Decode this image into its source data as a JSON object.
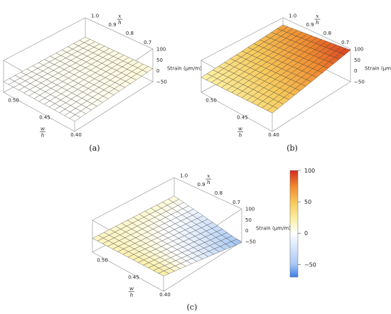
{
  "chart_data": [
    {
      "type": "surface",
      "panel_label": "(a)",
      "x_axis": {
        "label_num": "x",
        "label_den": "h",
        "ticks": [
          "1.0",
          "0.9",
          "0.8",
          "0.7"
        ]
      },
      "w_axis": {
        "label_num": "w",
        "label_den": "h",
        "ticks": [
          "0.50",
          "0.45",
          "0.40"
        ]
      },
      "z_axis": {
        "label": "Strain (μm/m)",
        "ticks": [
          "100",
          "50",
          "0",
          "−50"
        ],
        "range": [
          -50,
          100
        ]
      },
      "corner_values": {
        "x1_w050": 0,
        "x1_w040": 0,
        "x07_w050": 5,
        "x07_w040": 10
      }
    },
    {
      "type": "surface",
      "panel_label": "(b)",
      "x_axis": {
        "label_num": "x",
        "label_den": "h",
        "ticks": [
          "1.0",
          "0.9",
          "0.8",
          "0.7"
        ]
      },
      "w_axis": {
        "label_num": "w",
        "label_den": "h",
        "ticks": [
          "0.50",
          "0.45",
          "0.40"
        ]
      },
      "z_axis": {
        "label": "Strain (μm/m)",
        "ticks": [
          "100",
          "50",
          "0",
          "−50"
        ],
        "range": [
          -50,
          100
        ]
      },
      "corner_values": {
        "x1_w050": 20,
        "x1_w040": 40,
        "x07_w050": 65,
        "x07_w040": 95
      }
    },
    {
      "type": "surface",
      "panel_label": "(c)",
      "x_axis": {
        "label_num": "x",
        "label_den": "h",
        "ticks": [
          "1.0",
          "0.9",
          "0.8",
          "0.7"
        ]
      },
      "w_axis": {
        "label_num": "w",
        "label_den": "h",
        "ticks": [
          "0.50",
          "0.45",
          "0.40"
        ]
      },
      "z_axis": {
        "label": "Strain (μm/m)",
        "ticks": [
          "100",
          "50",
          "0",
          "−50"
        ],
        "range": [
          -50,
          100
        ]
      },
      "corner_values": {
        "x1_w050": 15,
        "x1_w040": 25,
        "x07_w050": 10,
        "x07_w040": -55
      }
    }
  ],
  "colorbar": {
    "ticks": [
      "100",
      "50",
      "0",
      "−50"
    ],
    "tick_values": [
      100,
      50,
      0,
      -50
    ],
    "range": [
      -70,
      100
    ],
    "colors": [
      "#3a7ee8",
      "#a8c8f4",
      "#ffffff",
      "#fbeea0",
      "#f7c95a",
      "#f08a2e",
      "#d42a1e"
    ]
  }
}
